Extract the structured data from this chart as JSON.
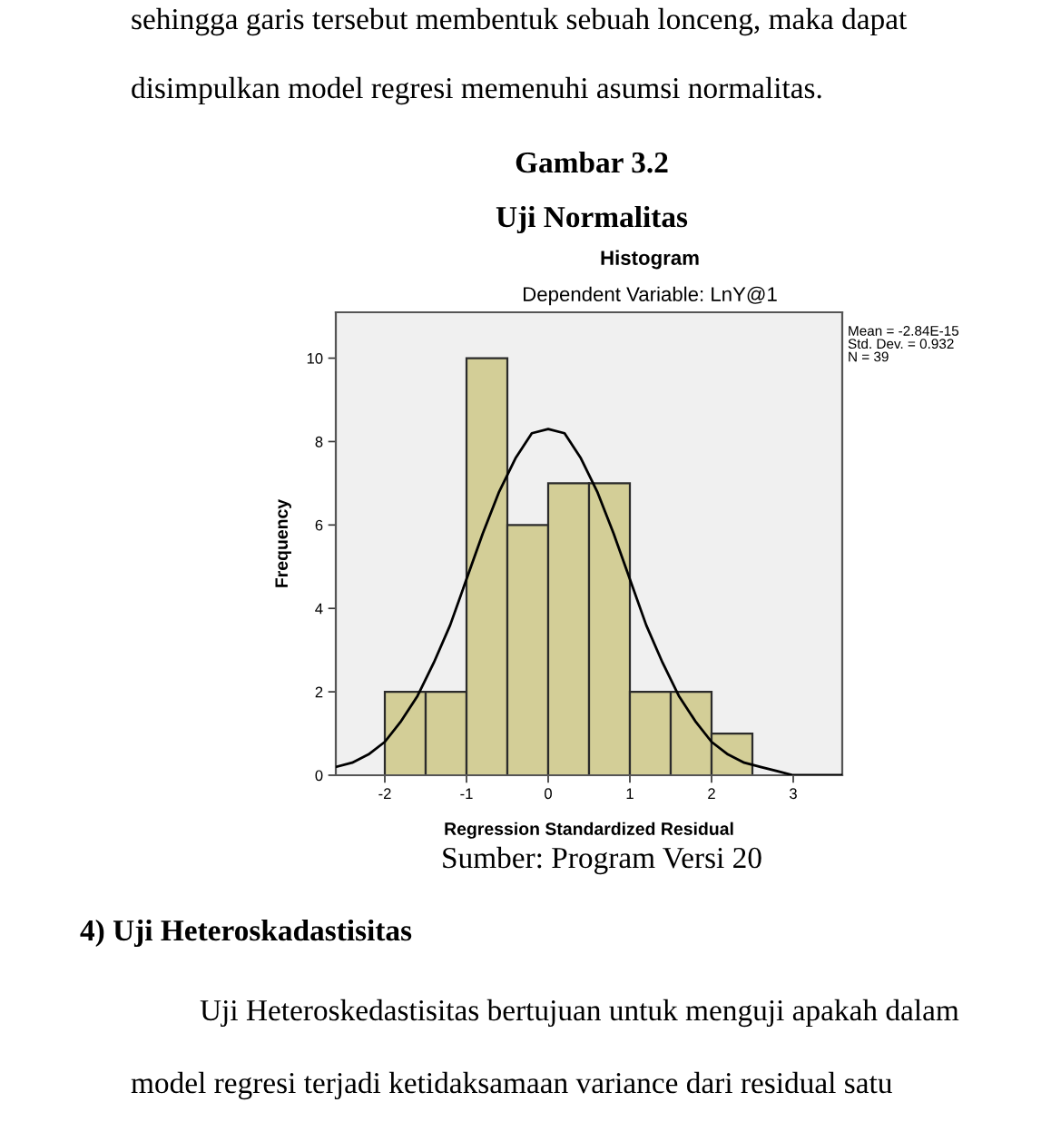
{
  "chart_data": {
    "type": "histogram",
    "title": "Histogram",
    "subtitle": "Dependent Variable: LnY@1",
    "xlabel": "Regression Standardized Residual",
    "ylabel": "Frequency",
    "bins": [
      -2,
      -1.5,
      -1,
      -0.5,
      0,
      0.5,
      1,
      1.5,
      2,
      2.5
    ],
    "values": [
      2,
      2,
      10,
      6,
      7,
      7,
      2,
      2,
      1
    ],
    "color": "#d3ce97",
    "series": [
      {
        "type": "line",
        "color": "#000000",
        "x": [
          -2.6,
          -2.4,
          -2.2,
          -2.0,
          -1.8,
          -1.6,
          -1.4,
          -1.2,
          -1.0,
          -0.8,
          -0.6,
          -0.4,
          -0.2,
          0,
          0.2,
          0.4,
          0.6,
          0.8,
          1.0,
          1.2,
          1.4,
          1.6,
          1.8,
          2.0,
          2.2,
          2.4,
          2.6,
          2.8,
          3.0,
          3.2,
          3.4,
          3.6
        ],
        "values": [
          0.2,
          0.3,
          0.5,
          0.8,
          1.3,
          1.9,
          2.7,
          3.6,
          4.7,
          5.8,
          6.8,
          7.6,
          8.2,
          8.3,
          8.2,
          7.6,
          6.8,
          5.8,
          4.7,
          3.6,
          2.7,
          1.9,
          1.3,
          0.8,
          0.5,
          0.3,
          0.2,
          0.1,
          0.0,
          0.0,
          0.0,
          0.0
        ]
      }
    ],
    "xlim": [
      -2.6,
      3.6
    ],
    "ylim": [
      0,
      11.1
    ],
    "xticks": [
      -2,
      -1,
      0,
      1,
      2,
      3
    ],
    "yticks": [
      0,
      2,
      4,
      6,
      8,
      10
    ],
    "annotations": [
      "sehingga garis tersebut membentuk sebuah lonceng, maka dapat",
      "disimpulkan model regresi memenuhi asumsi normalitas.",
      "Gambar 3.2",
      "Uji Normalitas",
      "Mean = -2.84E-15\nStd. Dev. = 0.932\nN = 39",
      "Sumber: Program Versi 20",
      "4) Uji Heteroskadastisitas",
      "Uji Heteroskedastisitas bertujuan untuk menguji apakah dalam",
      "model regresi terjadi ketidaksamaan variance dari residual satu"
    ]
  }
}
